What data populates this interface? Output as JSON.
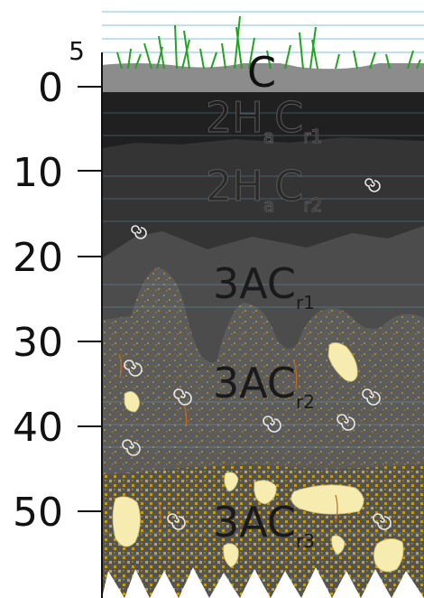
{
  "depth_scale": {
    "top_value": "5",
    "ticks": [
      "0",
      "10",
      "20",
      "30",
      "40",
      "50"
    ]
  },
  "horizons": [
    {
      "id": "c",
      "main": "C",
      "sub": "",
      "color": "#8a8a8a"
    },
    {
      "id": "2hacr1",
      "main": "2H",
      "sub_a": "a",
      "main2": "C",
      "sub": "r1",
      "color": "#1f1f1f"
    },
    {
      "id": "2hacr2",
      "main": "2H",
      "sub_a": "a",
      "main2": "C",
      "sub": "r2",
      "color": "#333333"
    },
    {
      "id": "3acr1",
      "main": "3AC",
      "sub": "r1",
      "color": "#4a4a4a"
    },
    {
      "id": "3acr2",
      "main": "3AC",
      "sub": "r2",
      "color": "#5a5a5a"
    },
    {
      "id": "3acr3",
      "main": "3AC",
      "sub": "r3",
      "color": "#555555"
    }
  ],
  "colors": {
    "grass": "#2aa82a",
    "sky_line": "#6fb7dc",
    "gravel": "#f5e9a8",
    "speckle": "#e0a800",
    "root": "#c0631a",
    "shell": "#e8e8e8"
  }
}
